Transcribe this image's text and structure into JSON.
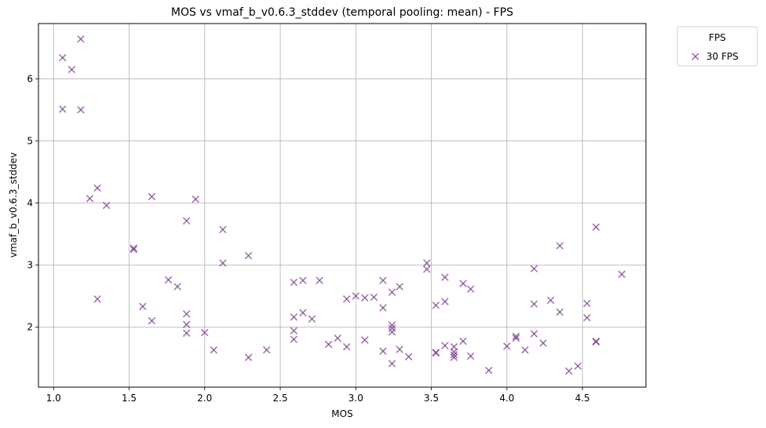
{
  "chart_data": {
    "type": "scatter",
    "title": "MOS vs vmaf_b_v0.6.3_stddev (temporal pooling: mean) - FPS",
    "xlabel": "MOS",
    "ylabel": "vmaf_b_v0.6.3_stddev",
    "xlim": [
      0.9,
      4.92
    ],
    "ylim": [
      1.03,
      6.89
    ],
    "xticks": [
      1.0,
      1.5,
      2.0,
      2.5,
      3.0,
      3.5,
      4.0,
      4.5
    ],
    "yticks": [
      2,
      3,
      4,
      5,
      6
    ],
    "grid": true,
    "marker": "x",
    "legend": {
      "title": "FPS",
      "placement": "outside-top-right"
    },
    "series": [
      {
        "name": "30 FPS",
        "color": "#7b3f8c",
        "points": [
          [
            1.06,
            6.34
          ],
          [
            1.12,
            6.15
          ],
          [
            1.18,
            6.64
          ],
          [
            1.06,
            5.51
          ],
          [
            1.18,
            5.5
          ],
          [
            1.24,
            4.07
          ],
          [
            1.29,
            4.24
          ],
          [
            1.35,
            3.96
          ],
          [
            1.29,
            2.45
          ],
          [
            1.53,
            3.27
          ],
          [
            1.53,
            3.25
          ],
          [
            1.59,
            2.33
          ],
          [
            1.65,
            4.1
          ],
          [
            1.65,
            2.1
          ],
          [
            1.76,
            2.76
          ],
          [
            1.82,
            2.65
          ],
          [
            1.88,
            3.71
          ],
          [
            1.88,
            2.21
          ],
          [
            1.88,
            2.04
          ],
          [
            1.88,
            1.9
          ],
          [
            1.94,
            4.06
          ],
          [
            2.0,
            1.91
          ],
          [
            2.06,
            1.63
          ],
          [
            2.12,
            3.57
          ],
          [
            2.12,
            3.03
          ],
          [
            2.29,
            3.15
          ],
          [
            2.29,
            1.51
          ],
          [
            2.41,
            1.63
          ],
          [
            2.59,
            2.72
          ],
          [
            2.59,
            2.16
          ],
          [
            2.59,
            1.94
          ],
          [
            2.59,
            1.8
          ],
          [
            2.65,
            2.75
          ],
          [
            2.65,
            2.23
          ],
          [
            2.71,
            2.13
          ],
          [
            2.76,
            2.75
          ],
          [
            2.82,
            1.72
          ],
          [
            2.88,
            1.82
          ],
          [
            2.94,
            2.45
          ],
          [
            2.94,
            1.68
          ],
          [
            3.0,
            2.5
          ],
          [
            3.06,
            2.47
          ],
          [
            3.06,
            1.79
          ],
          [
            3.12,
            2.48
          ],
          [
            3.18,
            2.75
          ],
          [
            3.18,
            2.31
          ],
          [
            3.18,
            1.61
          ],
          [
            3.24,
            2.56
          ],
          [
            3.24,
            2.03
          ],
          [
            3.24,
            1.98
          ],
          [
            3.24,
            1.92
          ],
          [
            3.24,
            1.41
          ],
          [
            3.29,
            2.65
          ],
          [
            3.29,
            1.64
          ],
          [
            3.35,
            1.52
          ],
          [
            3.47,
            3.03
          ],
          [
            3.47,
            2.93
          ],
          [
            3.53,
            2.35
          ],
          [
            3.53,
            1.59
          ],
          [
            3.53,
            1.58
          ],
          [
            3.59,
            2.8
          ],
          [
            3.59,
            2.41
          ],
          [
            3.59,
            1.7
          ],
          [
            3.65,
            1.68
          ],
          [
            3.65,
            1.6
          ],
          [
            3.65,
            1.55
          ],
          [
            3.65,
            1.51
          ],
          [
            3.71,
            2.7
          ],
          [
            3.71,
            1.77
          ],
          [
            3.76,
            2.61
          ],
          [
            3.76,
            1.53
          ],
          [
            3.88,
            1.3
          ],
          [
            4.0,
            1.69
          ],
          [
            4.06,
            1.85
          ],
          [
            4.06,
            1.82
          ],
          [
            4.12,
            1.63
          ],
          [
            4.18,
            2.94
          ],
          [
            4.18,
            2.37
          ],
          [
            4.18,
            1.89
          ],
          [
            4.24,
            1.74
          ],
          [
            4.29,
            2.43
          ],
          [
            4.35,
            3.31
          ],
          [
            4.35,
            2.24
          ],
          [
            4.41,
            1.29
          ],
          [
            4.47,
            1.37
          ],
          [
            4.53,
            2.38
          ],
          [
            4.53,
            2.15
          ],
          [
            4.59,
            3.61
          ],
          [
            4.59,
            1.77
          ],
          [
            4.59,
            1.76
          ],
          [
            4.76,
            2.85
          ]
        ]
      }
    ]
  }
}
